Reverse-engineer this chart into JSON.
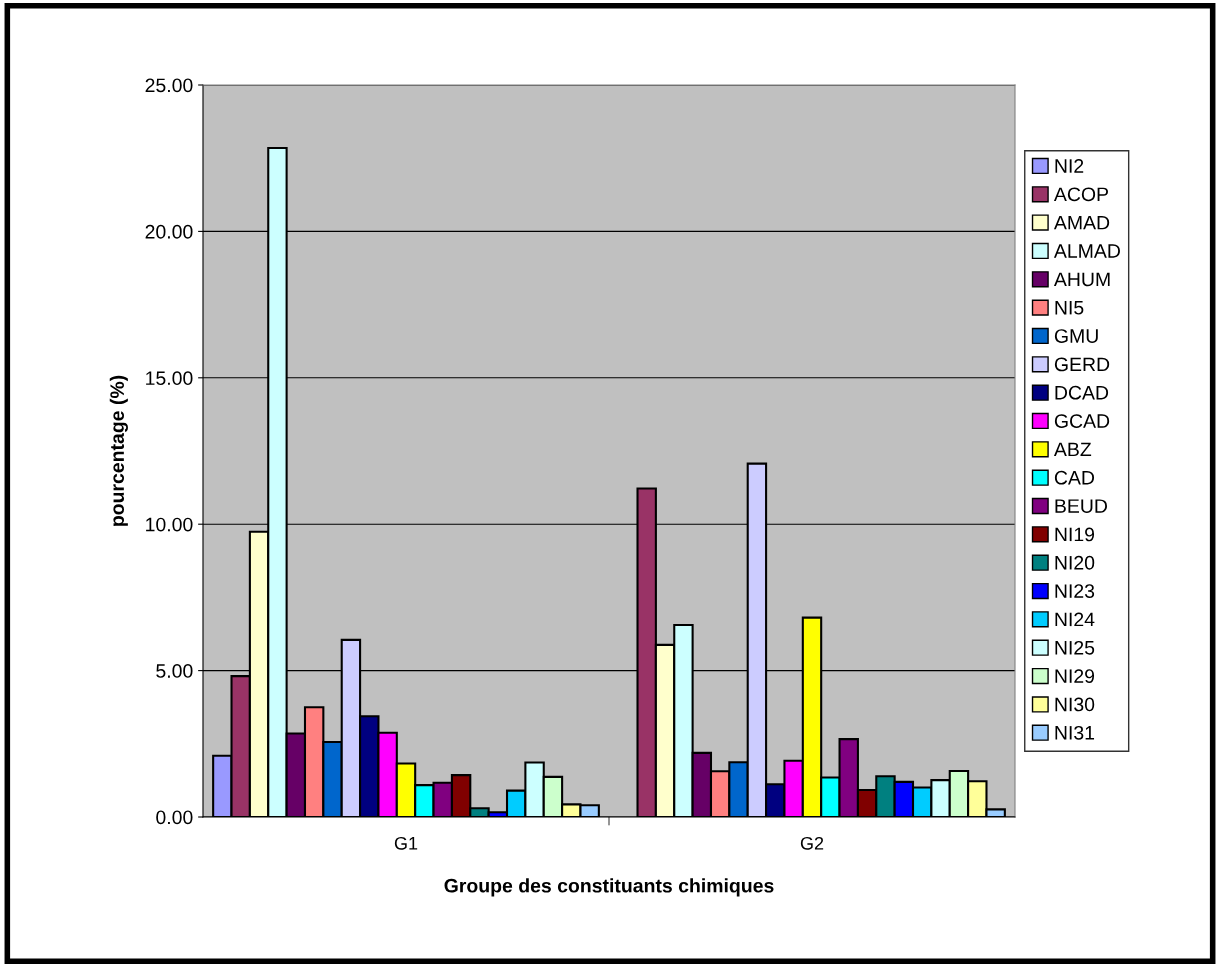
{
  "chart_data": {
    "type": "bar",
    "xlabel": "Groupe des constituants chimiques",
    "ylabel": "pourcentage (%)",
    "categories": [
      "G1",
      "G2"
    ],
    "series": [
      {
        "name": "NI2",
        "color": "#9999ff",
        "values": [
          2.09,
          null
        ]
      },
      {
        "name": "ACOP",
        "color": "#993366",
        "values": [
          4.81,
          11.22
        ]
      },
      {
        "name": "AMAD",
        "color": "#ffffcc",
        "values": [
          9.74,
          5.88
        ]
      },
      {
        "name": "ALMAD",
        "color": "#ccffff",
        "values": [
          22.85,
          6.56
        ]
      },
      {
        "name": "AHUM",
        "color": "#660066",
        "values": [
          2.85,
          2.19
        ]
      },
      {
        "name": "NI5",
        "color": "#ff8080",
        "values": [
          3.75,
          1.56
        ]
      },
      {
        "name": "GMU",
        "color": "#0066cc",
        "values": [
          2.56,
          1.87
        ]
      },
      {
        "name": "GERD",
        "color": "#ccccff",
        "values": [
          6.05,
          12.07
        ]
      },
      {
        "name": "DCAD",
        "color": "#000080",
        "values": [
          3.44,
          1.12
        ]
      },
      {
        "name": "GCAD",
        "color": "#ff00ff",
        "values": [
          2.88,
          1.92
        ]
      },
      {
        "name": "ABZ",
        "color": "#ffff00",
        "values": [
          1.83,
          6.81
        ]
      },
      {
        "name": "CAD",
        "color": "#00ffff",
        "values": [
          1.09,
          1.35
        ]
      },
      {
        "name": "BEUD",
        "color": "#800080",
        "values": [
          1.17,
          2.66
        ]
      },
      {
        "name": "NI19",
        "color": "#800000",
        "values": [
          1.43,
          0.92
        ]
      },
      {
        "name": "NI20",
        "color": "#008080",
        "values": [
          0.3,
          1.39
        ]
      },
      {
        "name": "NI23",
        "color": "#0000ff",
        "values": [
          0.16,
          1.2
        ]
      },
      {
        "name": "NI24",
        "color": "#00ccff",
        "values": [
          0.9,
          1.01
        ]
      },
      {
        "name": "NI25",
        "color": "#ccffff",
        "values": [
          1.86,
          1.26
        ]
      },
      {
        "name": "NI29",
        "color": "#ccffcc",
        "values": [
          1.37,
          1.57
        ]
      },
      {
        "name": "NI30",
        "color": "#ffff99",
        "values": [
          0.43,
          1.22
        ]
      },
      {
        "name": "NI31",
        "color": "#99ccff",
        "values": [
          0.4,
          0.26
        ]
      }
    ],
    "ylim": [
      0,
      25
    ],
    "yticks": [
      {
        "value": 0,
        "label": "0.00"
      },
      {
        "value": 5,
        "label": "5.00"
      },
      {
        "value": 10,
        "label": "10.00"
      },
      {
        "value": 15,
        "label": "15.00"
      },
      {
        "value": 20,
        "label": "20.00"
      },
      {
        "value": 25,
        "label": "25.00"
      }
    ],
    "grid": "y",
    "legend": "right"
  }
}
